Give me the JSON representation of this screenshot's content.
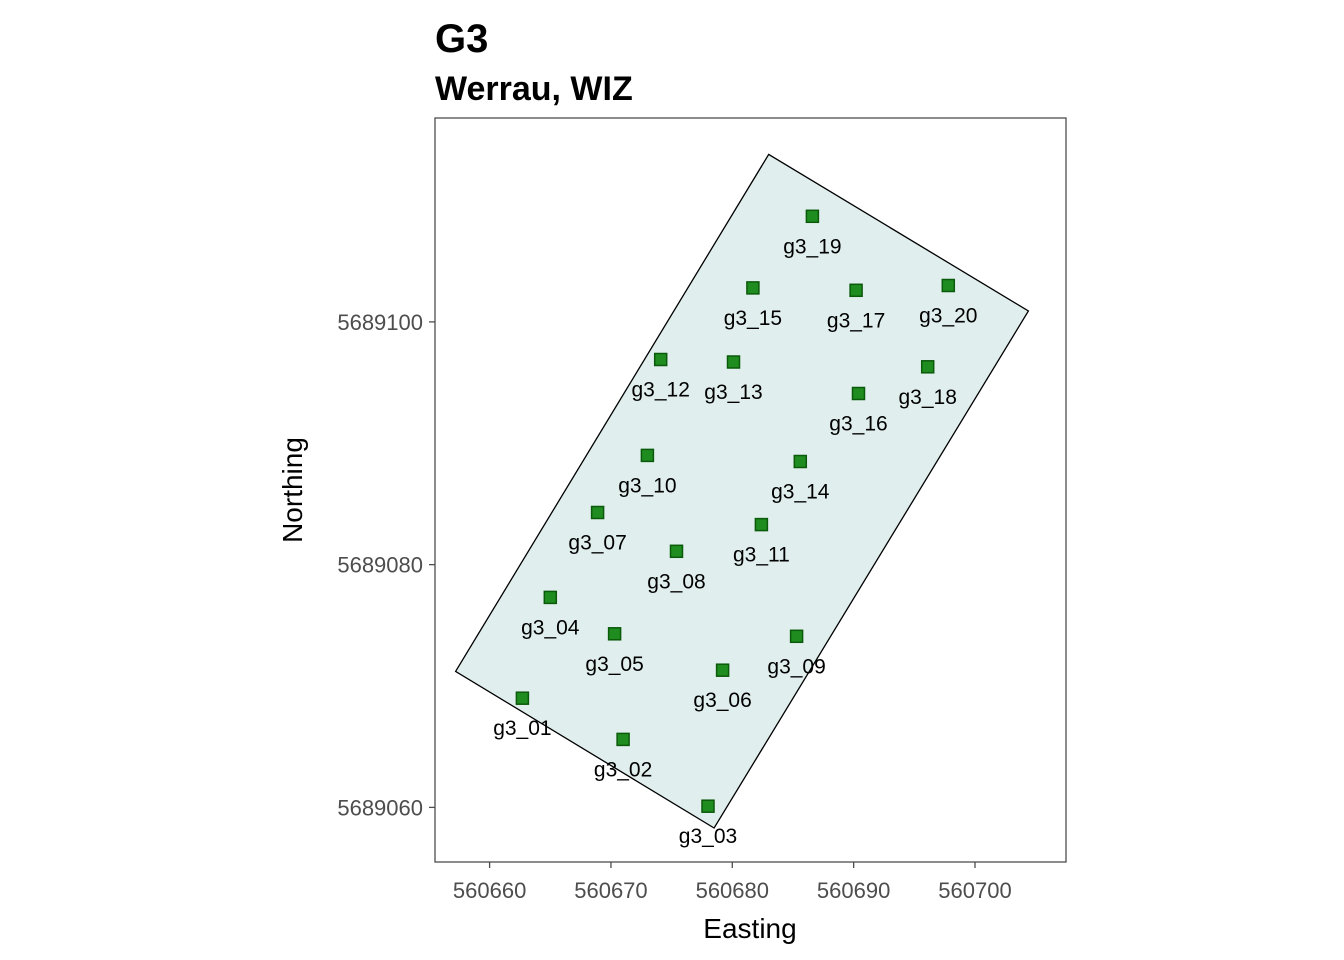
{
  "chart_data": {
    "type": "scatter",
    "title": "G3",
    "subtitle": "Werrau, WIZ",
    "xlabel": "Easting",
    "ylabel": "Northing",
    "xlim": [
      560655.5,
      560707.5
    ],
    "ylim": [
      5689055.5,
      5689116.8
    ],
    "x_ticks": [
      560660,
      560670,
      560680,
      560690,
      560700
    ],
    "y_ticks": [
      5689060,
      5689080,
      5689100
    ],
    "grid": false,
    "legend": "none",
    "colors": {
      "point_fill": "#1e8c1e",
      "point_stroke": "#0b5a0b",
      "polygon_fill": "#e0efee",
      "polygon_stroke": "#000000",
      "panel_border": "#4d4d4d"
    },
    "polygon": [
      {
        "x": 560657.2,
        "y": 5689071.2
      },
      {
        "x": 560683.0,
        "y": 5689113.8
      },
      {
        "x": 560704.4,
        "y": 5689100.9
      },
      {
        "x": 560678.5,
        "y": 5689058.3
      }
    ],
    "points": [
      {
        "label": "g3_01",
        "x": 560662.7,
        "y": 5689069.0
      },
      {
        "label": "g3_02",
        "x": 560671.0,
        "y": 5689065.6
      },
      {
        "label": "g3_03",
        "x": 560678.0,
        "y": 5689060.1
      },
      {
        "label": "g3_04",
        "x": 560665.0,
        "y": 5689077.3
      },
      {
        "label": "g3_05",
        "x": 560670.3,
        "y": 5689074.3
      },
      {
        "label": "g3_06",
        "x": 560679.2,
        "y": 5689071.3
      },
      {
        "label": "g3_07",
        "x": 560668.9,
        "y": 5689084.3
      },
      {
        "label": "g3_08",
        "x": 560675.4,
        "y": 5689081.1
      },
      {
        "label": "g3_09",
        "x": 560685.3,
        "y": 5689074.1
      },
      {
        "label": "g3_10",
        "x": 560673.0,
        "y": 5689089.0
      },
      {
        "label": "g3_11",
        "x": 560682.4,
        "y": 5689083.3
      },
      {
        "label": "g3_12",
        "x": 560674.1,
        "y": 5689096.9
      },
      {
        "label": "g3_13",
        "x": 560680.1,
        "y": 5689096.7
      },
      {
        "label": "g3_14",
        "x": 560685.6,
        "y": 5689088.5
      },
      {
        "label": "g3_15",
        "x": 560681.7,
        "y": 5689102.8
      },
      {
        "label": "g3_16",
        "x": 560690.4,
        "y": 5689094.1
      },
      {
        "label": "g3_17",
        "x": 560690.2,
        "y": 5689102.6
      },
      {
        "label": "g3_18",
        "x": 560696.1,
        "y": 5689096.3
      },
      {
        "label": "g3_19",
        "x": 560686.6,
        "y": 5689108.7
      },
      {
        "label": "g3_20",
        "x": 560697.8,
        "y": 5689103.0
      }
    ]
  }
}
